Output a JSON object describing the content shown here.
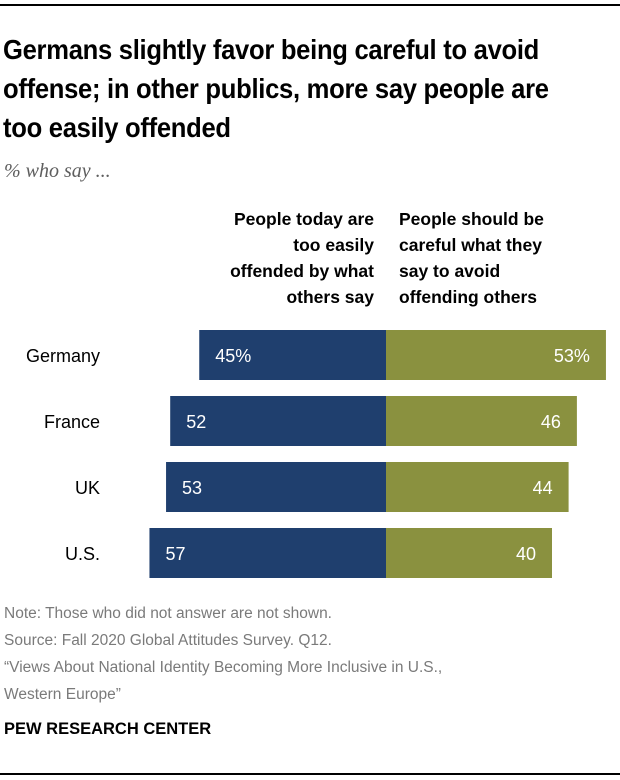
{
  "title": "Germans slightly favor being careful to avoid offense; in other publics, more say people are too easily offended",
  "subtitle": "% who say ...",
  "column_headers": {
    "left": [
      "People today are",
      "too easily",
      "offended by what",
      "others say"
    ],
    "right": [
      "People should be",
      "careful what they",
      "say to avoid",
      "offending others"
    ]
  },
  "colors": {
    "left": "#1f3f6e",
    "right": "#8a913f"
  },
  "chart_data": {
    "type": "bar",
    "orientation": "diverging-horizontal",
    "title": "Germans slightly favor being careful to avoid offense; in other publics, more say people are too easily offended",
    "subtitle": "% who say ...",
    "categories": [
      "Germany",
      "France",
      "UK",
      "U.S."
    ],
    "series": [
      {
        "name": "People today are too easily offended by what others say",
        "values": [
          45,
          52,
          53,
          57
        ],
        "labels": [
          "45%",
          "52",
          "53",
          "57"
        ]
      },
      {
        "name": "People should be careful what they say to avoid offending others",
        "values": [
          53,
          46,
          44,
          40
        ],
        "labels": [
          "53%",
          "46",
          "44",
          "40"
        ]
      }
    ],
    "xlabel": "",
    "ylabel": "",
    "grid": false
  },
  "footer": {
    "note": "Note: Those who did not answer are not shown.",
    "source": "Source: Fall 2020 Global Attitudes Survey. Q12.",
    "report_line1": "“Views About National Identity Becoming More Inclusive in U.S.,",
    "report_line2": "Western Europe”"
  },
  "brand": "PEW RESEARCH CENTER"
}
